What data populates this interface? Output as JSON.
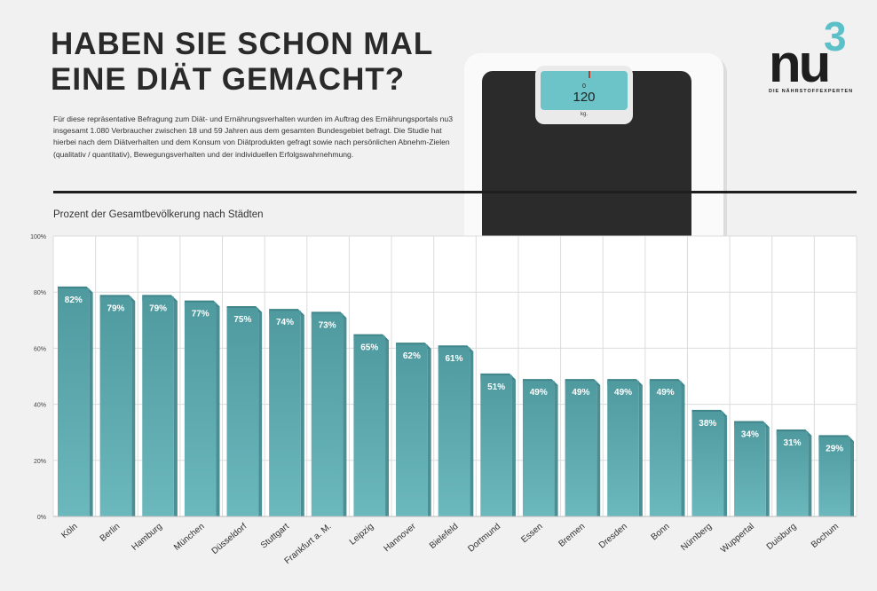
{
  "header": {
    "title_line1": "HABEN SIE SCHON MAL",
    "title_line2": "EINE DIÄT GEMACHT?",
    "intro": "Für diese repräsentative Befragung zum Diät- und Ernährungsverhalten wurden im Auftrag des Ernährungsportals nu3 insgesamt 1.080 Verbraucher zwischen 18 und 59 Jahren aus dem gesamten Bundesgebiet befragt. Die Studie hat hierbei nach dem Diätverhalten und dem Konsum von Diätprodukten gefragt sowie nach persönlichen Abnehm-Zielen (qualitativ / quantitativ), Bewegungsverhalten und der individuellen Erfolgswahrnehmung."
  },
  "logo": {
    "text": "nu",
    "superscript": "3",
    "tagline": "DIE NÄHRSTOFFEXPERTEN"
  },
  "scale_illustration": {
    "zero": "0",
    "weight": "120",
    "unit": "kg."
  },
  "colors": {
    "bar": "#6bb8bd",
    "bar_dark": "#4f9a9f",
    "label": "#ffffff"
  },
  "chart_data": {
    "type": "bar",
    "title": "Prozent der Gesamtbevölkerung nach Städten",
    "categories": [
      "Köln",
      "Berlin",
      "Hamburg",
      "München",
      "Düsseldorf",
      "Stuttgart",
      "Frankfurt a. M.",
      "Leipzig",
      "Hannover",
      "Bielefeld",
      "Dortmund",
      "Essen",
      "Bremen",
      "Dresden",
      "Bonn",
      "Nürnberg",
      "Wuppertal",
      "Duisburg",
      "Bochum"
    ],
    "values": [
      82,
      79,
      79,
      77,
      75,
      74,
      73,
      65,
      62,
      61,
      51,
      49,
      49,
      49,
      49,
      38,
      34,
      31,
      29
    ],
    "data_labels": [
      "82%",
      "79%",
      "79%",
      "77%",
      "75%",
      "74%",
      "73%",
      "65%",
      "62%",
      "61%",
      "51%",
      "49%",
      "49%",
      "49%",
      "49%",
      "38%",
      "34%",
      "31%",
      "29%"
    ],
    "ylim": [
      0,
      100
    ],
    "yticks": [
      "0%",
      "20%",
      "40%",
      "60%",
      "80%",
      "100%"
    ],
    "grid": true
  }
}
